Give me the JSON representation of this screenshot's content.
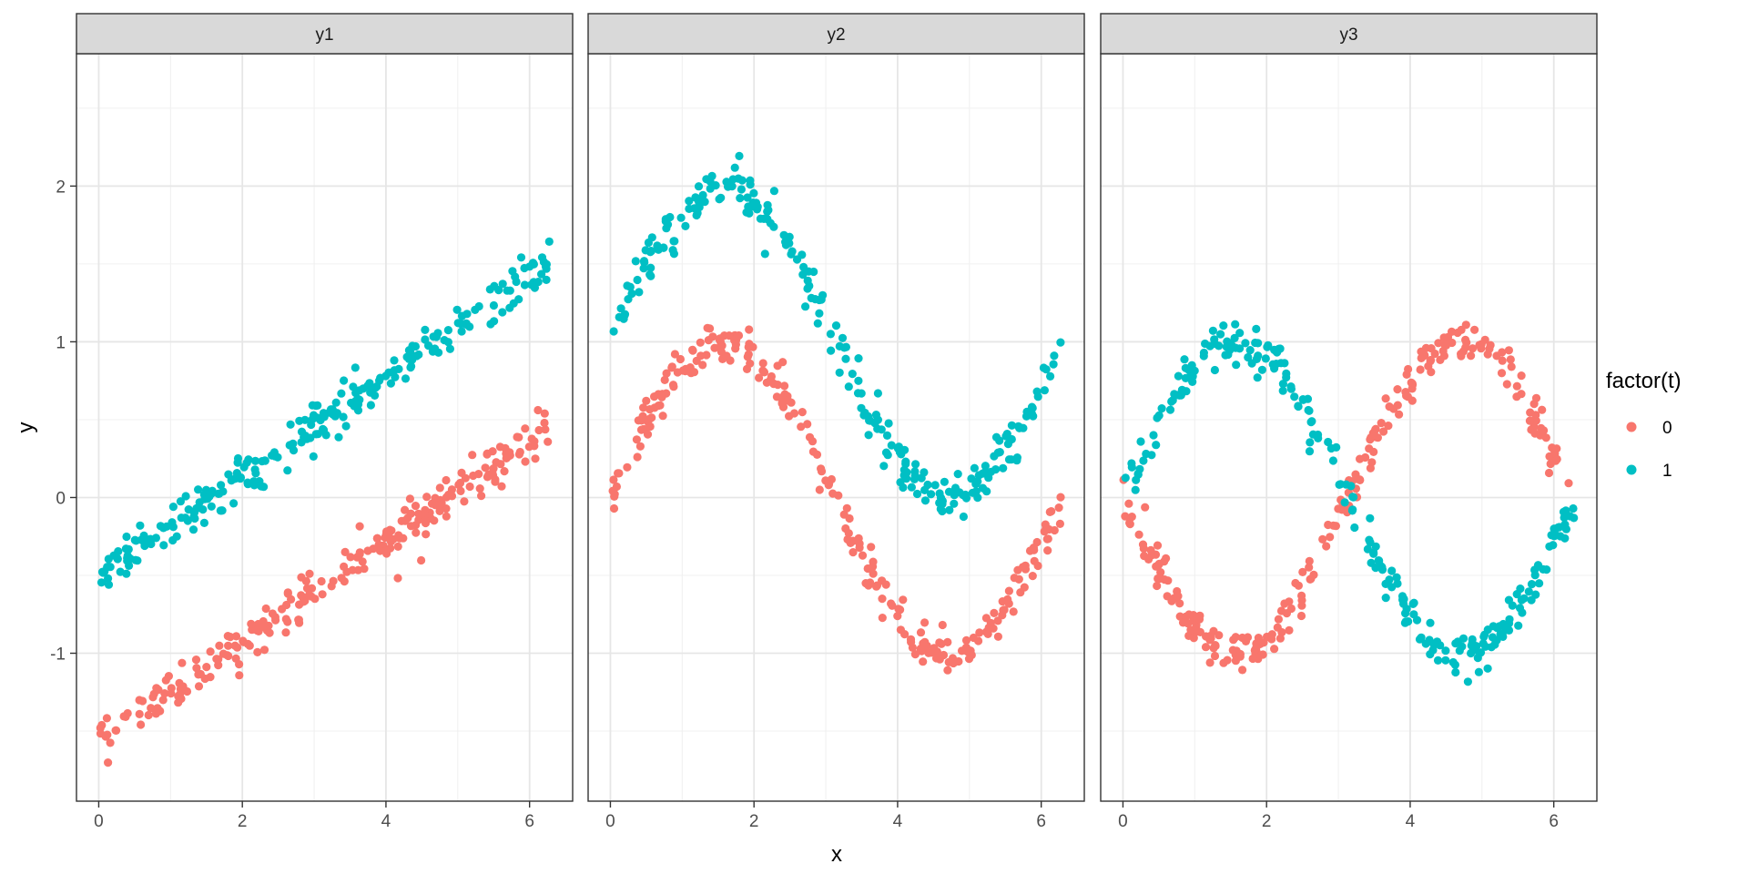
{
  "chart_data": {
    "type": "scatter",
    "facet_by": [
      "y1",
      "y2",
      "y3"
    ],
    "panels": [
      {
        "strip_label": "y1",
        "series": [
          {
            "name": "0",
            "function": "x/3.1416 - 1.55",
            "noise_sd": 0.07
          },
          {
            "name": "1",
            "function": "x/3.1416 - 0.5",
            "noise_sd": 0.07
          }
        ]
      },
      {
        "strip_label": "y2",
        "series": [
          {
            "name": "0",
            "function": "sin(x)",
            "noise_sd": 0.07
          },
          {
            "name": "1",
            "function": "sin(x) + 1",
            "noise_sd": 0.07
          }
        ]
      },
      {
        "strip_label": "y3",
        "series": [
          {
            "name": "0",
            "function": "-sin(x)",
            "noise_sd": 0.07
          },
          {
            "name": "1",
            "function": "sin(x)",
            "noise_sd": 0.07
          }
        ]
      }
    ],
    "points_per_series": 250,
    "x_range": [
      0,
      6.28
    ],
    "xlabel": "x",
    "ylabel": "y",
    "xlim": [
      -0.31,
      6.6
    ],
    "ylim": [
      -1.95,
      2.85
    ],
    "x_ticks": [
      "0",
      "2",
      "4",
      "6"
    ],
    "x_tick_values": [
      0,
      2,
      4,
      6
    ],
    "y_ticks": [
      "-1",
      "0",
      "1",
      "2"
    ],
    "y_tick_values": [
      -1,
      0,
      1,
      2
    ],
    "grid": true,
    "legend": {
      "title": "factor(t)",
      "position": "right",
      "entries": [
        {
          "label": "0",
          "color": "#F8766D"
        },
        {
          "label": "1",
          "color": "#00BFC4"
        }
      ]
    },
    "colors": {
      "0": "#F8766D",
      "1": "#00BFC4"
    }
  }
}
